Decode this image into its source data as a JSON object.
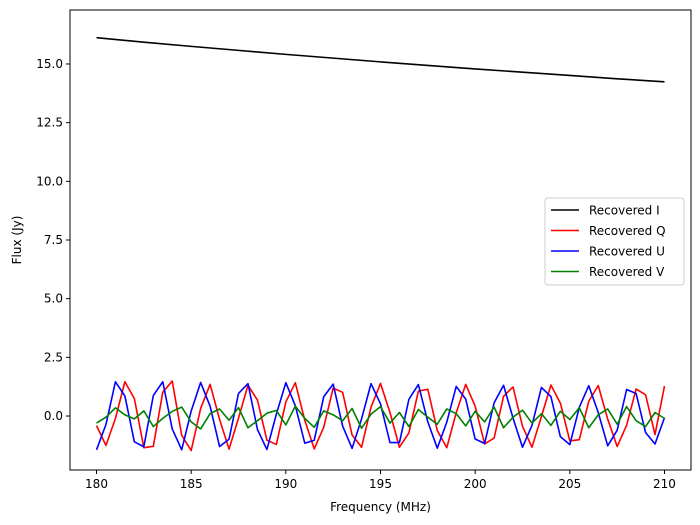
{
  "chart_data": {
    "type": "line",
    "xlabel": "Frequency (MHz)",
    "ylabel": "Flux (Jy)",
    "xlim": [
      178.6,
      211.4
    ],
    "ylim": [
      -2.3,
      17.3
    ],
    "xticks": [
      180,
      185,
      190,
      195,
      200,
      205,
      210
    ],
    "yticks": [
      0.0,
      2.5,
      5.0,
      7.5,
      10.0,
      12.5,
      15.0
    ],
    "xtick_labels": [
      "180",
      "185",
      "190",
      "195",
      "200",
      "205",
      "210"
    ],
    "ytick_labels": [
      "0.0",
      "2.5",
      "5.0",
      "7.5",
      "10.0",
      "12.5",
      "15.0"
    ],
    "grid": false,
    "legend_position": "center-right",
    "series": [
      {
        "name": "Recovered I",
        "color": "#000000",
        "x": [
          180,
          182.5,
          185,
          187.5,
          190,
          192.5,
          195,
          197.5,
          200,
          202.5,
          205,
          207.5,
          210
        ],
        "y": [
          16.12,
          15.93,
          15.75,
          15.58,
          15.41,
          15.25,
          15.09,
          14.94,
          14.79,
          14.65,
          14.51,
          14.37,
          14.24
        ]
      },
      {
        "name": "Recovered Q",
        "color": "#ff0000",
        "x": [
          180.0,
          180.5,
          181.0,
          181.5,
          182.0,
          182.5,
          183.0,
          183.5,
          184.0,
          184.5,
          185.0,
          185.5,
          186.0,
          186.5,
          187.0,
          187.5,
          188.0,
          188.5,
          189.0,
          189.5,
          190.0,
          190.5,
          191.0,
          191.5,
          192.0,
          192.5,
          193.0,
          193.5,
          194.0,
          194.5,
          195.0,
          195.5,
          196.0,
          196.5,
          197.0,
          197.5,
          198.0,
          198.5,
          199.0,
          199.5,
          200.0,
          200.5,
          201.0,
          201.5,
          202.0,
          202.5,
          203.0,
          203.5,
          204.0,
          204.5,
          205.0,
          205.5,
          206.0,
          206.5,
          207.0,
          207.5,
          208.0,
          208.5,
          209.0,
          209.5,
          210.0
        ],
        "y": [
          -0.41,
          -1.25,
          -0.1,
          1.46,
          0.74,
          -1.35,
          -1.29,
          1.01,
          1.49,
          -0.82,
          -1.47,
          0.32,
          1.35,
          -0.14,
          -1.41,
          -0.09,
          1.31,
          0.68,
          -1.03,
          -1.21,
          0.6,
          1.42,
          -0.18,
          -1.4,
          -0.48,
          1.19,
          1.01,
          -0.81,
          -1.33,
          0.38,
          1.39,
          0.15,
          -1.33,
          -0.72,
          1.06,
          1.14,
          -0.62,
          -1.35,
          0.14,
          1.35,
          0.42,
          -1.19,
          -0.94,
          0.84,
          1.24,
          -0.44,
          -1.33,
          -0.02,
          1.32,
          0.55,
          -1.06,
          -1.01,
          0.63,
          1.3,
          -0.13,
          -1.3,
          -0.39,
          1.15,
          0.91,
          -0.79,
          1.28
        ]
      },
      {
        "name": "Recovered U",
        "color": "#0000ff",
        "x": [
          180.0,
          180.5,
          181.0,
          181.5,
          182.0,
          182.5,
          183.0,
          183.5,
          184.0,
          184.5,
          185.0,
          185.5,
          186.0,
          186.5,
          187.0,
          187.5,
          188.0,
          188.5,
          189.0,
          189.5,
          190.0,
          190.5,
          191.0,
          191.5,
          192.0,
          192.5,
          193.0,
          193.5,
          194.0,
          194.5,
          195.0,
          195.5,
          196.0,
          196.5,
          197.0,
          197.5,
          198.0,
          198.5,
          199.0,
          199.5,
          200.0,
          200.5,
          201.0,
          201.5,
          202.0,
          202.5,
          203.0,
          203.5,
          204.0,
          204.5,
          205.0,
          205.5,
          206.0,
          206.5,
          207.0,
          207.5,
          208.0,
          208.5,
          209.0,
          209.5,
          210.0
        ],
        "y": [
          -1.44,
          -0.36,
          1.46,
          0.85,
          -1.1,
          -1.31,
          0.87,
          1.46,
          -0.55,
          -1.44,
          0.21,
          1.43,
          0.42,
          -1.3,
          -0.99,
          0.96,
          1.38,
          -0.57,
          -1.43,
          0.08,
          1.42,
          0.44,
          -1.16,
          -1.03,
          0.82,
          1.36,
          -0.43,
          -1.38,
          -0.12,
          1.38,
          0.52,
          -1.13,
          -1.13,
          0.71,
          1.34,
          -0.25,
          -1.37,
          -0.26,
          1.26,
          0.72,
          -0.98,
          -1.17,
          0.56,
          1.31,
          -0.09,
          -1.33,
          -0.4,
          1.22,
          0.83,
          -0.88,
          -1.22,
          0.37,
          1.29,
          0.15,
          -1.27,
          -0.61,
          1.13,
          0.96,
          -0.7,
          -1.19,
          -0.07
        ]
      },
      {
        "name": "Recovered V",
        "color": "#008000",
        "x": [
          180.0,
          180.5,
          181.0,
          181.5,
          182.0,
          182.5,
          183.0,
          183.5,
          184.0,
          184.5,
          185.0,
          185.5,
          186.0,
          186.5,
          187.0,
          187.5,
          188.0,
          188.5,
          189.0,
          189.5,
          190.0,
          190.5,
          191.0,
          191.5,
          192.0,
          192.5,
          193.0,
          193.5,
          194.0,
          194.5,
          195.0,
          195.5,
          196.0,
          196.5,
          197.0,
          197.5,
          198.0,
          198.5,
          199.0,
          199.5,
          200.0,
          200.5,
          201.0,
          201.5,
          202.0,
          202.5,
          203.0,
          203.5,
          204.0,
          204.5,
          205.0,
          205.5,
          206.0,
          206.5,
          207.0,
          207.5,
          208.0,
          208.5,
          209.0,
          209.5,
          210.0
        ],
        "y": [
          -0.3,
          -0.05,
          0.35,
          0.05,
          -0.12,
          0.22,
          -0.45,
          -0.1,
          0.2,
          0.38,
          -0.25,
          -0.55,
          0.1,
          0.3,
          -0.18,
          0.36,
          -0.5,
          -0.2,
          0.12,
          0.24,
          -0.38,
          0.42,
          -0.1,
          -0.48,
          0.22,
          0.05,
          -0.2,
          0.32,
          -0.52,
          0.08,
          0.4,
          -0.3,
          0.15,
          -0.45,
          0.28,
          -0.05,
          -0.35,
          0.3,
          0.1,
          -0.42,
          0.2,
          -0.25,
          0.38,
          -0.5,
          -0.05,
          0.25,
          -0.3,
          0.1,
          -0.4,
          0.2,
          -0.15,
          0.35,
          -0.5,
          0.05,
          0.3,
          -0.35,
          0.4,
          -0.2,
          -0.45,
          0.15,
          -0.1
        ]
      }
    ]
  }
}
